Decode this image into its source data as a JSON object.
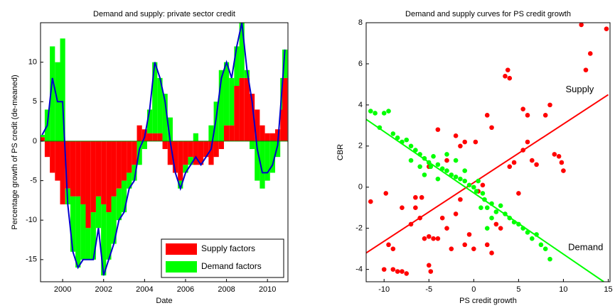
{
  "chart_data": [
    {
      "type": "bar",
      "title": "Demand and supply: private sector credit",
      "xlabel": "Date",
      "ylabel": "Percentage growth of PS credit (de-meaned)",
      "x": [
        1999.0,
        1999.25,
        1999.5,
        1999.75,
        2000.0,
        2000.25,
        2000.5,
        2000.75,
        2001.0,
        2001.25,
        2001.5,
        2001.75,
        2002.0,
        2002.25,
        2002.5,
        2002.75,
        2003.0,
        2003.25,
        2003.5,
        2003.75,
        2004.0,
        2004.25,
        2004.5,
        2004.75,
        2005.0,
        2005.25,
        2005.5,
        2005.75,
        2006.0,
        2006.25,
        2006.5,
        2006.75,
        2007.0,
        2007.25,
        2007.5,
        2007.75,
        2008.0,
        2008.25,
        2008.5,
        2008.75,
        2009.0,
        2009.25,
        2009.5,
        2009.75,
        2010.0,
        2010.25,
        2010.5,
        2010.75,
        2010.85
      ],
      "series": [
        {
          "name": "Supply factors",
          "color": "#ff0000",
          "values": [
            0.5,
            -2,
            -4,
            -5,
            -8,
            -6,
            -7,
            -7,
            -8,
            -11,
            -9,
            -7,
            -8,
            -9,
            -7,
            -6,
            -5,
            -4,
            -3,
            2,
            1.5,
            1,
            1,
            1,
            -1,
            -3,
            -4,
            -5,
            -3,
            -2,
            -3,
            -3,
            -2,
            -3,
            -2,
            -1,
            2,
            2,
            7,
            8,
            8,
            6,
            4,
            2,
            1,
            1,
            1.5,
            4,
            8
          ]
        },
        {
          "name": "Demand factors",
          "color": "#00ff00",
          "values": [
            0.3,
            4,
            12,
            10,
            13,
            -2,
            -7,
            -9,
            -7,
            -4,
            -6,
            -4,
            -9,
            -6,
            -6,
            -4,
            -4,
            -2,
            -2,
            -3,
            -1,
            3,
            9,
            7,
            6,
            3,
            0,
            -1,
            -1,
            -1,
            1,
            0,
            0,
            2,
            5,
            9,
            8,
            6,
            5,
            7,
            1,
            -1,
            -5,
            -6,
            -5,
            -4,
            -2,
            4,
            3.6
          ]
        }
      ],
      "line_color": "#0000cc",
      "line_values": [
        0.8,
        2,
        8,
        5,
        5,
        -8,
        -14,
        -16,
        -15,
        -15,
        -15,
        -11,
        -17,
        -15,
        -13,
        -10,
        -9,
        -6,
        -5,
        -1,
        0.5,
        4,
        10,
        8,
        5,
        0,
        -4,
        -6,
        -4,
        -3,
        -2,
        -3,
        -2,
        -1,
        3,
        8,
        10,
        8,
        12,
        15,
        9,
        5,
        -1,
        -4,
        -4,
        -3,
        -0.5,
        8,
        11.6
      ],
      "xlim": [
        1998.92,
        2011.0
      ],
      "ylim": [
        -17.8,
        15
      ],
      "xticks": [
        2000,
        2002,
        2004,
        2006,
        2008,
        2010
      ],
      "yticks": [
        -15,
        -10,
        -5,
        0,
        5,
        10
      ],
      "legend": "lower right"
    },
    {
      "type": "scatter",
      "title": "Demand and supply curves for PS credit growth",
      "xlabel": "PS credit growth",
      "ylabel": "CBR",
      "points": [
        {
          "color": "#ff0000",
          "x": [
            -11.5,
            -10,
            -9,
            -8.5,
            -8,
            -7.5,
            -9.5,
            -9,
            -8,
            -7,
            -6.5,
            -6,
            -5.5,
            -5,
            -5,
            -4.8,
            -4.5,
            -4,
            -3.5,
            -3,
            -2.5,
            -2,
            -1.5,
            -1,
            -0.5,
            0,
            0.5,
            1,
            1.5,
            2,
            2.5,
            3,
            3.5,
            3.8,
            4,
            4,
            4.5,
            5,
            5.5,
            6,
            6,
            6.5,
            7,
            8,
            8.5,
            9,
            9.5,
            10,
            9.8,
            12,
            13,
            12.5,
            14.8,
            -3,
            -2,
            -1.5,
            -4,
            -1,
            0.2,
            -5,
            -5.8,
            -9.8,
            2,
            1.5,
            5.5,
            -6.5
          ],
          "y": [
            -0.7,
            -4.0,
            -4.0,
            -4.1,
            -4.1,
            -4.2,
            -2.8,
            -3.0,
            -1.0,
            -1.8,
            -0.5,
            -1.5,
            -2.5,
            -2.4,
            -3.8,
            -4.1,
            -2.5,
            -2.5,
            -1.5,
            -2.0,
            -3.0,
            -1.3,
            -0.6,
            -2.8,
            -2.3,
            -3.0,
            -0.2,
            0.1,
            -2.8,
            -3.2,
            -1.8,
            -2.0,
            5.4,
            5.7,
            5.3,
            1.0,
            1.2,
            -0.3,
            1.8,
            2.2,
            3.5,
            1.3,
            1.1,
            3.5,
            4.0,
            1.6,
            1.5,
            0.8,
            1.2,
            7.9,
            6.5,
            5.7,
            7.7,
            1.3,
            2.5,
            2.0,
            2.8,
            2.2,
            2.2,
            1.0,
            -0.5,
            -0.3,
            2.9,
            3.5,
            3.8,
            -1.0
          ]
        },
        {
          "color": "#00ff00",
          "x": [
            -11.5,
            -11,
            -10,
            -9.5,
            -10.5,
            -9,
            -8.5,
            -8,
            -7.5,
            -7,
            -6.5,
            -6,
            -5.5,
            -5,
            -4.8,
            -4.5,
            -4,
            -3.5,
            -3,
            -2.5,
            -2,
            -1.5,
            -1,
            -0.5,
            0,
            0.3,
            0.5,
            1,
            1.2,
            1.5,
            2,
            2.5,
            3,
            3.5,
            4,
            4.5,
            5,
            5.5,
            6,
            6.5,
            7,
            7.5,
            8,
            8.5,
            -5.5,
            -6,
            -3,
            -4,
            1.5,
            2,
            -2,
            0.8,
            -1,
            -7
          ],
          "y": [
            3.7,
            3.6,
            3.6,
            3.7,
            2.9,
            2.6,
            2.4,
            2.2,
            2.3,
            2.0,
            1.8,
            1.6,
            1.4,
            1.2,
            1.0,
            1.5,
            1.1,
            0.9,
            0.8,
            0.6,
            0.5,
            0.4,
            0.3,
            0.1,
            0,
            -0.2,
            0.3,
            -0.3,
            -0.6,
            -1.0,
            -0.8,
            -1.2,
            -0.9,
            -1.3,
            -1.5,
            -1.7,
            -1.8,
            -2.0,
            -2.2,
            -2.5,
            -2.3,
            -2.8,
            -3.0,
            -3.5,
            0.6,
            1.0,
            1.6,
            0.4,
            -2.0,
            -1.5,
            1.3,
            -1.0,
            0.8,
            1.3
          ]
        }
      ],
      "lines": [
        {
          "label": "Supply",
          "color": "#ff0000",
          "x": [
            -12,
            15
          ],
          "y": [
            -3.2,
            4.5
          ]
        },
        {
          "label": "Demand",
          "color": "#00ff00",
          "x": [
            -12,
            14.5
          ],
          "y": [
            3.3,
            -4.6
          ]
        }
      ],
      "xlim": [
        -12,
        15.2
      ],
      "ylim": [
        -4.6,
        8
      ],
      "xticks": [
        -10,
        -5,
        0,
        5,
        10,
        15
      ],
      "yticks": [
        -4,
        -2,
        0,
        2,
        4,
        6,
        8
      ]
    }
  ]
}
